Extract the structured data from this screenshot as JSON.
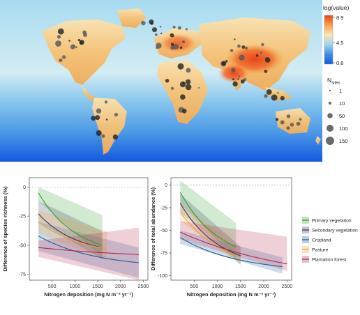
{
  "map": {
    "colorbar": {
      "title": "log(value)",
      "ticks": [
        8.9,
        4.5,
        0.6
      ],
      "colors": [
        "#e8431b",
        "#f6a24a",
        "#fbe6b3",
        "#9fd6ee",
        "#3b8fe4",
        "#1458e0"
      ]
    },
    "size_legend": {
      "title_main": "N",
      "title_sub": "sites",
      "entries": [
        {
          "value": 1,
          "label": "1"
        },
        {
          "value": 10,
          "label": "10"
        },
        {
          "value": 50,
          "label": "50"
        },
        {
          "value": 100,
          "label": "100"
        },
        {
          "value": 150,
          "label": "150"
        }
      ],
      "dot_color": "#6a6a6a"
    }
  },
  "chart_data": [
    {
      "type": "line",
      "ylabel": "Difference of species richness (%)",
      "xlabel": "Nitrogen deposition (mg N m⁻² yr⁻¹)",
      "xlim": [
        0,
        2600
      ],
      "ylim": [
        -80,
        8
      ],
      "xticks": [
        500,
        1000,
        1500,
        2000,
        2500
      ],
      "yticks": [
        0,
        -25,
        -50,
        -75
      ],
      "reference_line": 0,
      "series": [
        {
          "name": "Primary vegetation",
          "color": "#2ca02c",
          "x": [
            200,
            1600
          ],
          "y": [
            -5,
            -50
          ],
          "band": {
            "x": [
              200,
              1600
            ],
            "lower": [
              -12,
              -60
            ],
            "upper": [
              0,
              -24
            ]
          }
        },
        {
          "name": "Secondary vegetation",
          "color": "#3b3b5a",
          "x": [
            200,
            1600
          ],
          "y": [
            -23,
            -52
          ],
          "band": {
            "x": [
              200,
              1600
            ],
            "lower": [
              -30,
              -62
            ],
            "upper": [
              -12,
              -38
            ]
          }
        },
        {
          "name": "Cropland",
          "color": "#1f5f99",
          "x": [
            200,
            2400
          ],
          "y": [
            -42,
            -65
          ],
          "band": {
            "x": [
              200,
              2400
            ],
            "lower": [
              -55,
              -78
            ],
            "upper": [
              -30,
              -52
            ]
          }
        },
        {
          "name": "Pasture",
          "color": "#e8a33a",
          "x": [
            200,
            1700
          ],
          "y": [
            -30,
            -53
          ],
          "band": {
            "x": [
              200,
              1700
            ],
            "lower": [
              -40,
              -63
            ],
            "upper": [
              -20,
              -38
            ]
          }
        },
        {
          "name": "Plantation forest",
          "color": "#b4294a",
          "x": [
            200,
            2400
          ],
          "y": [
            -52,
            -58
          ],
          "band": {
            "x": [
              200,
              2400
            ],
            "lower": [
              -60,
              -80
            ],
            "upper": [
              -46,
              -35
            ]
          }
        }
      ]
    },
    {
      "type": "line",
      "ylabel": "Difference of total abundance (%)",
      "xlabel": "Nitrogen deposition (mg N m⁻² yr⁻¹)",
      "xlim": [
        0,
        2600
      ],
      "ylim": [
        -105,
        8
      ],
      "xticks": [
        500,
        1000,
        1500,
        2000,
        2500
      ],
      "yticks": [
        0,
        -25,
        -50,
        -75,
        -100
      ],
      "reference_line": 0,
      "series": [
        {
          "name": "Primary vegetation",
          "color": "#2ca02c",
          "x": [
            200,
            1400
          ],
          "y": [
            -8,
            -68
          ],
          "band": {
            "x": [
              200,
              1400
            ],
            "lower": [
              -20,
              -82
            ],
            "upper": [
              5,
              -42
            ]
          }
        },
        {
          "name": "Secondary vegetation",
          "color": "#3b3b5a",
          "x": [
            200,
            1500
          ],
          "y": [
            -20,
            -78
          ],
          "band": {
            "x": [
              200,
              1500
            ],
            "lower": [
              -30,
              -88
            ],
            "upper": [
              -10,
              -68
            ]
          }
        },
        {
          "name": "Cropland",
          "color": "#1f5f99",
          "x": [
            200,
            2400
          ],
          "y": [
            -58,
            -90
          ],
          "band": {
            "x": [
              200,
              2400
            ],
            "lower": [
              -65,
              -98
            ],
            "upper": [
              -50,
              -80
            ]
          }
        },
        {
          "name": "Pasture",
          "color": "#e8a33a",
          "x": [
            200,
            1500
          ],
          "y": [
            -30,
            -80
          ],
          "band": {
            "x": [
              200,
              1500
            ],
            "lower": [
              -40,
              -88
            ],
            "upper": [
              -20,
              -70
            ]
          }
        },
        {
          "name": "Plantation forest",
          "color": "#b4294a",
          "x": [
            200,
            2500
          ],
          "y": [
            -52,
            -87
          ],
          "band": {
            "x": [
              200,
              2500
            ],
            "lower": [
              -60,
              -95
            ],
            "upper": [
              -40,
              -57
            ]
          }
        }
      ]
    }
  ]
}
